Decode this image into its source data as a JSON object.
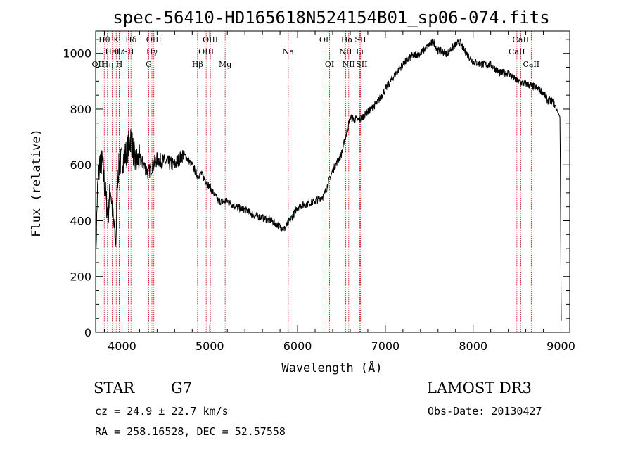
{
  "chart_data": {
    "type": "line",
    "title": "spec-56410-HD165618N524154B01_sp06-074.fits",
    "xlabel": "Wavelength (Å)",
    "ylabel": "Flux (relative)",
    "xlim": [
      3700,
      9100
    ],
    "ylim": [
      0,
      1080
    ],
    "xticks": [
      4000,
      5000,
      6000,
      7000,
      8000,
      9000
    ],
    "yticks": [
      0,
      200,
      400,
      600,
      800,
      1000
    ],
    "spectrum_anchors": {
      "x": [
        3700,
        3720,
        3750,
        3780,
        3810,
        3840,
        3870,
        3900,
        3930,
        3950,
        3970,
        4000,
        4050,
        4100,
        4150,
        4200,
        4250,
        4300,
        4350,
        4400,
        4500,
        4600,
        4700,
        4800,
        4861,
        4900,
        5000,
        5100,
        5200,
        5300,
        5400,
        5500,
        5600,
        5700,
        5800,
        5850,
        5890,
        5950,
        6000,
        6100,
        6200,
        6300,
        6400,
        6500,
        6563,
        6600,
        6700,
        6800,
        6900,
        7000,
        7100,
        7200,
        7300,
        7400,
        7500,
        7550,
        7600,
        7700,
        7800,
        7850,
        7900,
        8000,
        8100,
        8200,
        8300,
        8400,
        8500,
        8600,
        8700,
        8800,
        8850,
        8900,
        8950,
        8990,
        9000,
        9005
      ],
      "y": [
        250,
        500,
        620,
        600,
        500,
        420,
        520,
        400,
        320,
        560,
        600,
        620,
        640,
        700,
        610,
        620,
        600,
        570,
        600,
        620,
        610,
        600,
        640,
        600,
        560,
        570,
        520,
        470,
        470,
        450,
        440,
        420,
        410,
        400,
        380,
        370,
        390,
        420,
        450,
        460,
        470,
        490,
        580,
        640,
        720,
        770,
        760,
        790,
        820,
        870,
        920,
        960,
        990,
        1000,
        1030,
        1040,
        1010,
        1000,
        1030,
        1040,
        1010,
        970,
        960,
        960,
        930,
        930,
        900,
        890,
        880,
        860,
        830,
        830,
        800,
        770,
        200,
        0
      ]
    },
    "spectral_lines": [
      {
        "name": "Hθ",
        "wavelength": 3798,
        "row": 0
      },
      {
        "name": "OII",
        "wavelength": 3727,
        "row": 2
      },
      {
        "name": "Hη",
        "wavelength": 3835,
        "row": 2
      },
      {
        "name": "HeI",
        "wavelength": 3889,
        "row": 1
      },
      {
        "name": "K",
        "wavelength": 3934,
        "row": 0
      },
      {
        "name": "H",
        "wavelength": 3969,
        "row": 2
      },
      {
        "name": "SII",
        "wavelength": 4072,
        "row": 1
      },
      {
        "name": "Hδ",
        "wavelength": 4102,
        "row": 0
      },
      {
        "name": "Hε",
        "wavelength": 3970,
        "row": 1
      },
      {
        "name": "G",
        "wavelength": 4304,
        "row": 2
      },
      {
        "name": "Hγ",
        "wavelength": 4341,
        "row": 1
      },
      {
        "name": "OIII",
        "wavelength": 4363,
        "row": 0
      },
      {
        "name": "Hβ",
        "wavelength": 4861,
        "row": 2
      },
      {
        "name": "OIII",
        "wavelength": 4959,
        "row": 1
      },
      {
        "name": "OIII",
        "wavelength": 5007,
        "row": 0
      },
      {
        "name": "Mg",
        "wavelength": 5175,
        "row": 2
      },
      {
        "name": "Na",
        "wavelength": 5894,
        "row": 1
      },
      {
        "name": "OI",
        "wavelength": 6300,
        "row": 0
      },
      {
        "name": "OI",
        "wavelength": 6364,
        "row": 2
      },
      {
        "name": "NII",
        "wavelength": 6548,
        "row": 1
      },
      {
        "name": "Hα",
        "wavelength": 6563,
        "row": 0
      },
      {
        "name": "NII",
        "wavelength": 6583,
        "row": 2
      },
      {
        "name": "Li",
        "wavelength": 6708,
        "row": 1
      },
      {
        "name": "SII",
        "wavelength": 6716,
        "row": 0
      },
      {
        "name": "SII",
        "wavelength": 6731,
        "row": 2
      },
      {
        "name": "CaII",
        "wavelength": 8498,
        "row": 1
      },
      {
        "name": "CaII",
        "wavelength": 8542,
        "row": 0
      },
      {
        "name": "CaII",
        "wavelength": 8662,
        "row": 2
      }
    ]
  },
  "info": {
    "object_class": "STAR",
    "subclass": "G7",
    "redshift": "cz = 24.9 ± 22.7 km/s",
    "coords": "RA = 258.16528, DEC =  52.57558",
    "survey": "LAMOST DR3",
    "obs_date": "Obs-Date: 20130427"
  },
  "colors": {
    "spectrum": "#000000",
    "line_marker": "#cc0000",
    "axis": "#000000"
  }
}
